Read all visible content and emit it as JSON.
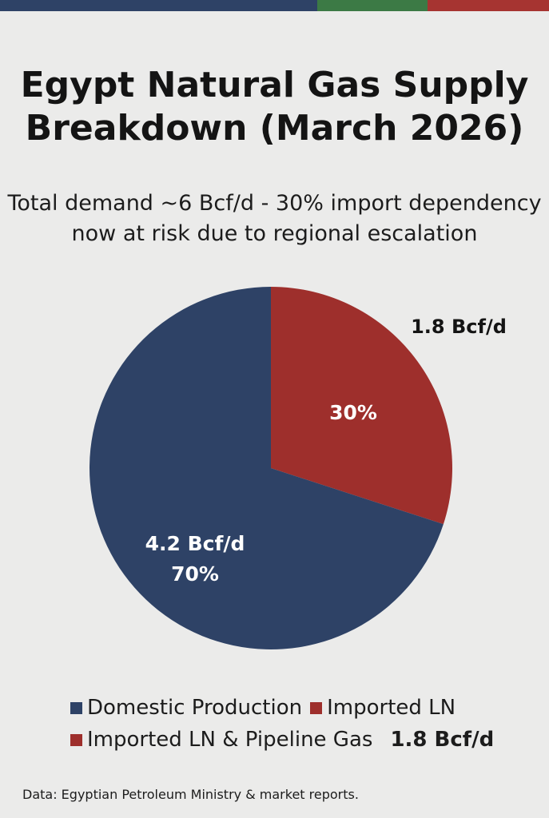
{
  "colors": {
    "background": "#ebebea",
    "domestic": "#2e4266",
    "imported": "#9e2f2c",
    "topbar": [
      "#2e4266",
      "#3c7a45",
      "#a63431"
    ]
  },
  "chart_data": {
    "type": "pie",
    "title_lines": [
      "Egypt Natural Gas Supply",
      "Breakdown (March 2026)"
    ],
    "subtitle_lines": [
      "Total demand ~6 Bcf/d - 30% import dependency",
      "now at risk due to regional escalation"
    ],
    "slices": [
      {
        "value": 30,
        "color": "#9e2f2c",
        "value_label": "1.8 Bcf/d",
        "percent_label": "30%"
      },
      {
        "value": 70,
        "color": "#2e4266",
        "value_label": "4.2 Bcf/d",
        "percent_label": "70%"
      }
    ],
    "start_angle_deg": 0,
    "direction": "clockwise",
    "legend": [
      {
        "label": "Domestic Production",
        "color": "#2e4266"
      },
      {
        "label": "Imported LN",
        "color": "#9e2f2c"
      },
      {
        "label": "Imported LN & Pipeline Gas",
        "color": "#9e2f2c",
        "value": "1.8 Bcf/d"
      }
    ],
    "source": "Data: Egyptian Petroleum Ministry & market reports."
  }
}
